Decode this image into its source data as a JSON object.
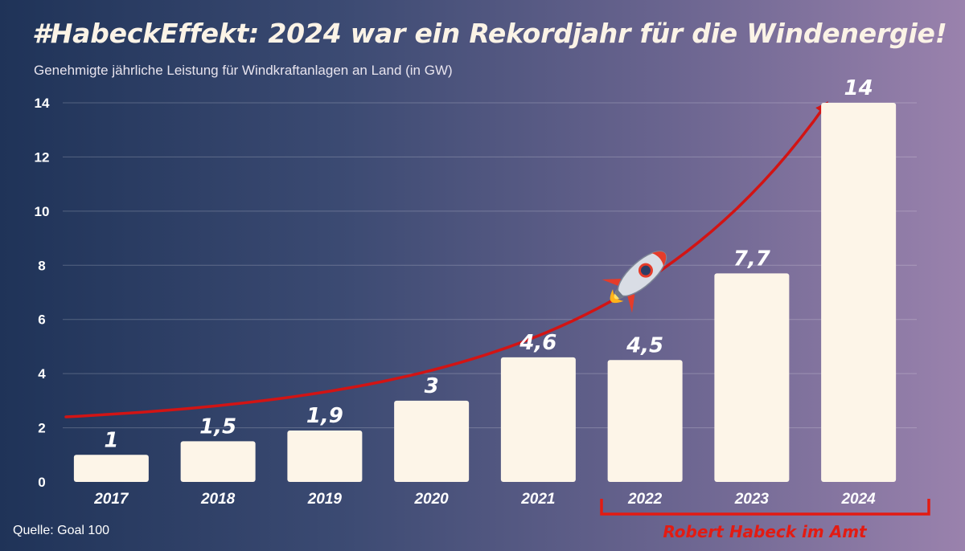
{
  "chart_data": {
    "type": "bar",
    "title": "#HabeckEffekt: 2024 war ein Rekordjahr für die Windenergie!",
    "subtitle": "Genehmigte jährliche Leistung für Windkraftanlagen an Land (in GW)",
    "categories": [
      "2017",
      "2018",
      "2019",
      "2020",
      "2021",
      "2022",
      "2023",
      "2024"
    ],
    "values": [
      1,
      1.5,
      1.9,
      3,
      4.6,
      4.5,
      7.7,
      14
    ],
    "value_labels": [
      "1",
      "1,5",
      "1,9",
      "3",
      "4,6",
      "4,5",
      "7,7",
      "14"
    ],
    "ylim": [
      0,
      14
    ],
    "yticks": [
      0,
      2,
      4,
      6,
      8,
      10,
      12,
      14
    ],
    "ytick_labels": [
      "0",
      "2",
      "4",
      "6",
      "8",
      "10",
      "12",
      "14"
    ],
    "grid": true,
    "xlabel": "",
    "ylabel": "",
    "annotation": {
      "text": "Robert Habeck im Amt",
      "from_category": "2022",
      "to_category": "2024",
      "trend_arrow": true,
      "icon": "rocket-icon"
    },
    "source": "Quelle: Goal 100"
  },
  "colors": {
    "bar": "#fdf5e8",
    "arrow": "#d21414",
    "annotation": "#e31b12",
    "text": "#ffffff",
    "title": "#fbf3e6"
  }
}
